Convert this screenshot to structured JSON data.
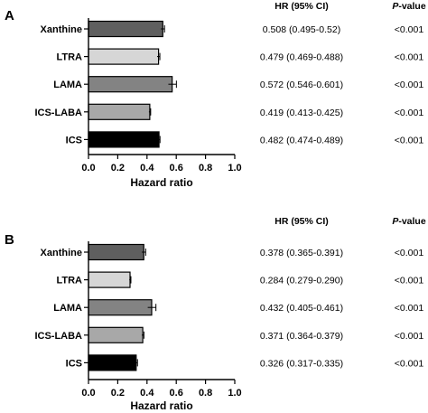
{
  "chart_data": [
    {
      "panel": "A",
      "type": "bar",
      "orientation": "horizontal",
      "categories": [
        "Xanthine",
        "LTRA",
        "LAMA",
        "ICS-LABA",
        "ICS"
      ],
      "values": [
        0.508,
        0.479,
        0.572,
        0.419,
        0.482
      ],
      "ci_low": [
        0.495,
        0.469,
        0.546,
        0.413,
        0.474
      ],
      "ci_high": [
        0.52,
        0.488,
        0.601,
        0.425,
        0.489
      ],
      "hr_text": [
        "0.508 (0.495-0.52)",
        "0.479 (0.469-0.488)",
        "0.572 (0.546-0.601)",
        "0.419 (0.413-0.425)",
        "0.482 (0.474-0.489)"
      ],
      "p_text": [
        "<0.001",
        "<0.001",
        "<0.001",
        "<0.001",
        "<0.001"
      ],
      "colors": [
        "#5f5f5f",
        "#d6d6d6",
        "#838383",
        "#a8a8a8",
        "#000000"
      ],
      "xlabel": "Hazard ratio",
      "xlim": [
        0,
        1.0
      ],
      "xticks": [
        "0.0",
        "0.2",
        "0.4",
        "0.6",
        "0.8",
        "1.0"
      ],
      "hr_header": "HR (95% CI)",
      "p_header_italic": "P",
      "p_header_rest": "-value"
    },
    {
      "panel": "B",
      "type": "bar",
      "orientation": "horizontal",
      "categories": [
        "Xanthine",
        "LTRA",
        "LAMA",
        "ICS-LABA",
        "ICS"
      ],
      "values": [
        0.378,
        0.284,
        0.432,
        0.371,
        0.326
      ],
      "ci_low": [
        0.365,
        0.279,
        0.405,
        0.364,
        0.317
      ],
      "ci_high": [
        0.391,
        0.29,
        0.461,
        0.379,
        0.335
      ],
      "hr_text": [
        "0.378 (0.365-0.391)",
        "0.284 (0.279-0.290)",
        "0.432 (0.405-0.461)",
        "0.371 (0.364-0.379)",
        "0.326 (0.317-0.335)"
      ],
      "p_text": [
        "<0.001",
        "<0.001",
        "<0.001",
        "<0.001",
        "<0.001"
      ],
      "colors": [
        "#5f5f5f",
        "#d6d6d6",
        "#838383",
        "#a8a8a8",
        "#000000"
      ],
      "xlabel": "Hazard ratio",
      "xlim": [
        0,
        1.0
      ],
      "xticks": [
        "0.0",
        "0.2",
        "0.4",
        "0.6",
        "0.8",
        "1.0"
      ],
      "hr_header": "HR (95% CI)",
      "p_header_italic": "P",
      "p_header_rest": "-value"
    }
  ]
}
